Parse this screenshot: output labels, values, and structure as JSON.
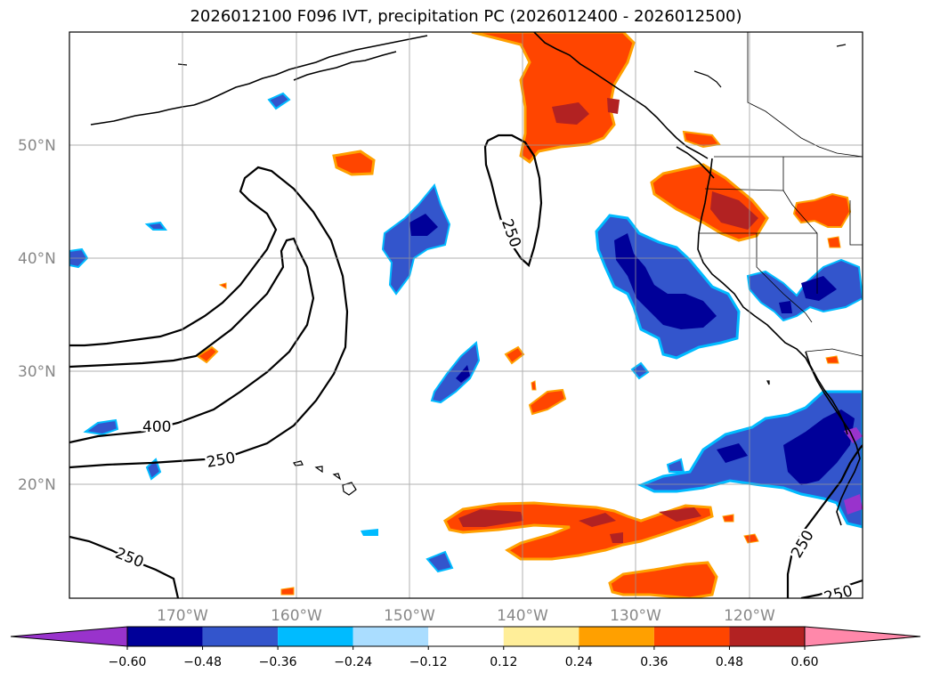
{
  "title": "2026012100 F096 IVT, precipitation PC (2026012400 - 2026012500)",
  "lat_labels": [
    "50°N",
    "40°N",
    "30°N",
    "20°N"
  ],
  "lon_labels": [
    "170°W",
    "160°W",
    "150°W",
    "140°W",
    "130°W",
    "120°W"
  ],
  "contour_labels": [
    "250",
    "400",
    "250",
    "250",
    "250",
    "250"
  ],
  "colorbar": {
    "ticks": [
      "−0.60",
      "−0.48",
      "−0.36",
      "−0.24",
      "−0.12",
      "0.12",
      "0.24",
      "0.36",
      "0.48",
      "0.60"
    ],
    "colors": [
      "#9933cc",
      "#000099",
      "#3355cc",
      "#00bbff",
      "#aaddff",
      "#ffffff",
      "#ffee99",
      "#ffa000",
      "#ff4500",
      "#b22222",
      "#ff88aa"
    ]
  },
  "colors": {
    "strong_pos": "#b22222",
    "pos": "#ff4500",
    "weak_pos": "#ffa000",
    "weakest_pos": "#ffee99",
    "weak_neg": "#aaddff",
    "neg_light": "#00bbff",
    "neg": "#3355cc",
    "strong_neg": "#000099",
    "extreme_neg": "#9933cc"
  }
}
